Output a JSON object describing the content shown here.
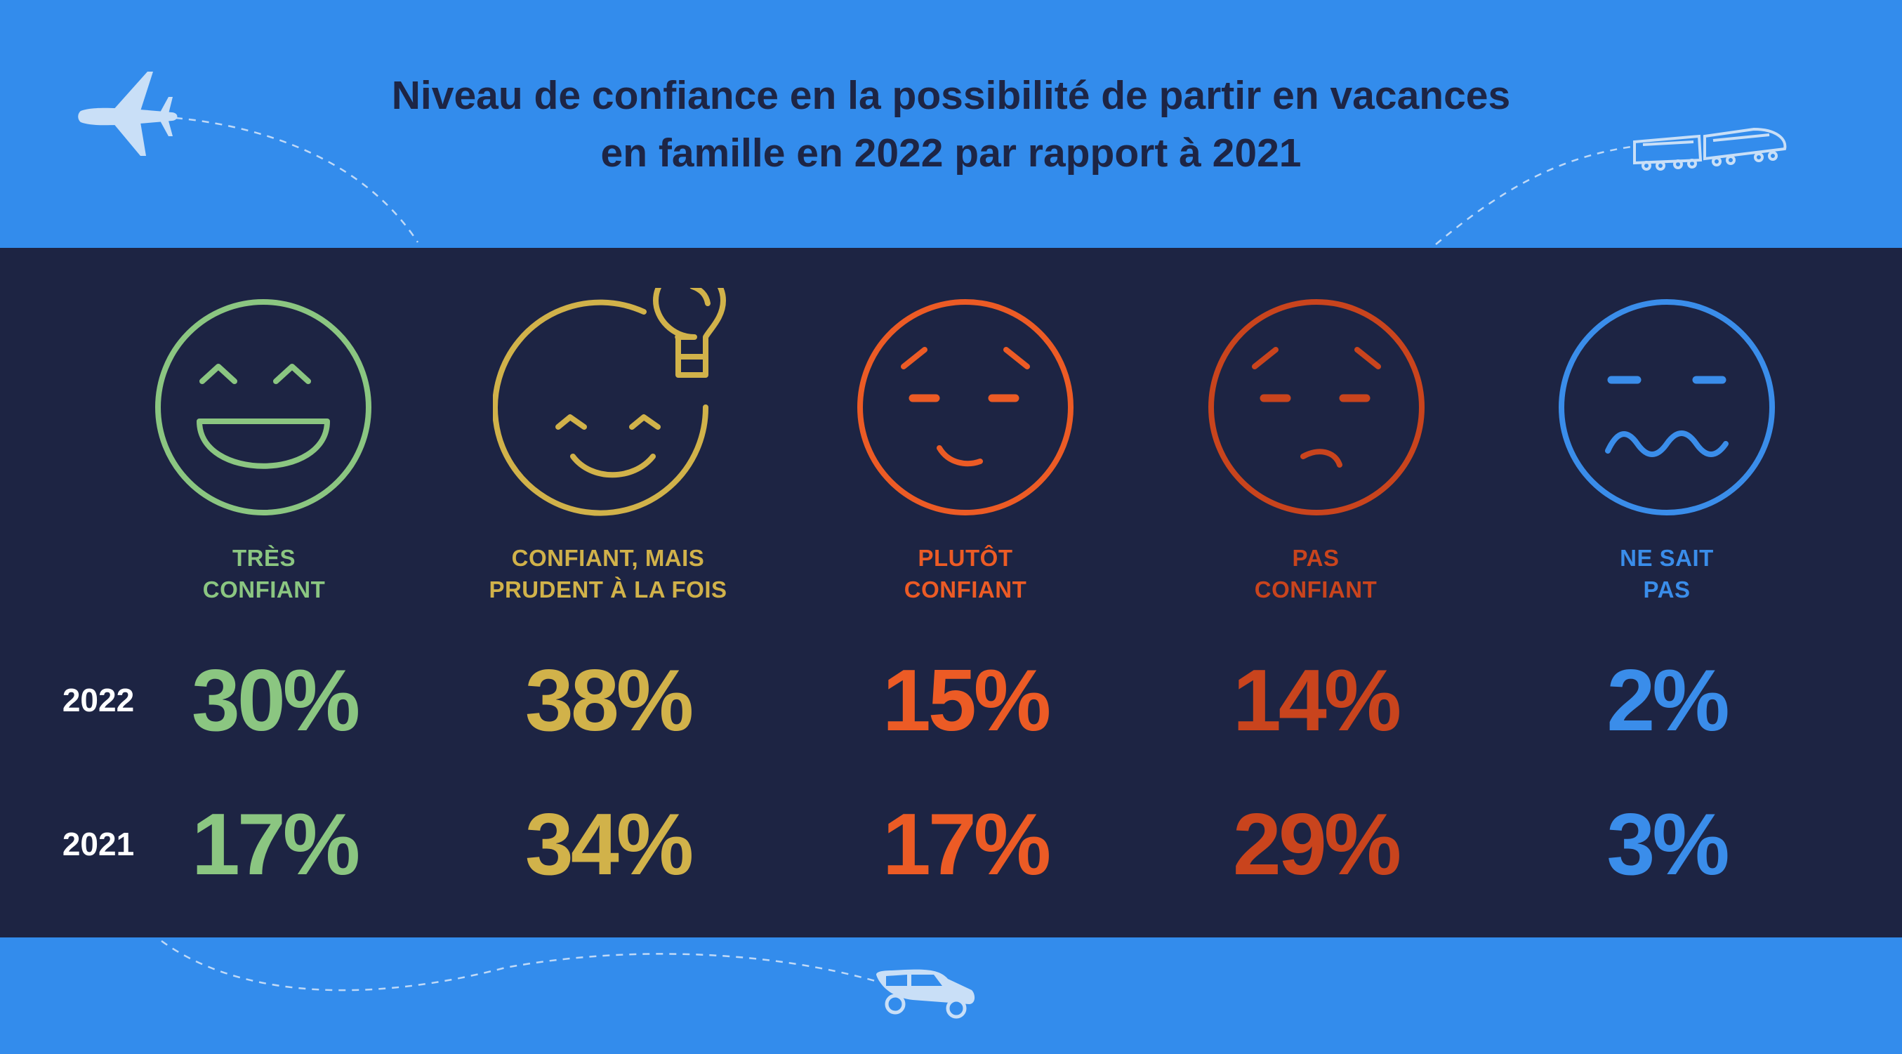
{
  "title": {
    "line1": "Niveau de confiance en la possibilité de partir en vacances",
    "line2": "en famille en 2022 par rapport à 2021"
  },
  "colors": {
    "background": "#338CEC",
    "panel": "#1D2443",
    "title": "#1D2545",
    "tres_confiant": "#8BC681",
    "confiant_prudent": "#D1B24A",
    "plutot_confiant": "#EC5B25",
    "pas_confiant": "#C9441D",
    "ne_sait_pas": "#3A8DEA"
  },
  "icons": [
    "airplane-icon",
    "train-icon",
    "car-icon",
    "lightbulb-icon"
  ],
  "chart_data": {
    "type": "table",
    "title": "Niveau de confiance en la possibilité de partir en vacances en famille en 2022 par rapport à 2021",
    "categories": [
      {
        "line1": "TRÈS",
        "line2": "CONFIANT"
      },
      {
        "line1": "CONFIANT, MAIS",
        "line2": "PRUDENT À LA FOIS"
      },
      {
        "line1": "PLUTÔT",
        "line2": "CONFIANT"
      },
      {
        "line1": "PAS",
        "line2": "CONFIANT"
      },
      {
        "line1": "NE SAIT",
        "line2": "PAS"
      }
    ],
    "series": [
      {
        "name": "2022",
        "values": [
          30,
          38,
          15,
          14,
          2
        ],
        "labels": [
          "30%",
          "38%",
          "15%",
          "14%",
          "2%"
        ]
      },
      {
        "name": "2021",
        "values": [
          17,
          34,
          17,
          29,
          3
        ],
        "labels": [
          "17%",
          "34%",
          "17%",
          "29%",
          "3%"
        ]
      }
    ],
    "unit": "%"
  }
}
